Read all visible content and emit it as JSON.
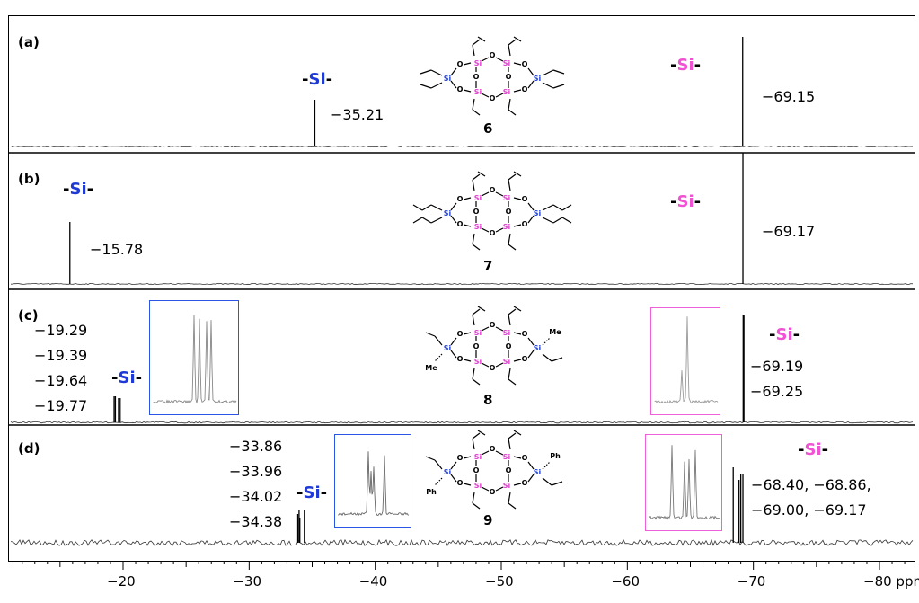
{
  "panels": [
    {
      "id": "a",
      "label": "(a)",
      "compound": "6",
      "peaks": [
        -35.21,
        -69.15
      ],
      "shift_labels": [
        "−35.21",
        "−69.15"
      ],
      "tags": {
        "blue": "Si",
        "pink": "Si"
      }
    },
    {
      "id": "b",
      "label": "(b)",
      "compound": "7",
      "peaks": [
        -15.78,
        -69.17
      ],
      "shift_labels": [
        "−15.78",
        "−69.17"
      ],
      "tags": {
        "blue": "Si",
        "pink": "Si"
      }
    },
    {
      "id": "c",
      "label": "(c)",
      "compound": "8",
      "peaks": [
        -19.29,
        -19.39,
        -19.64,
        -19.77,
        -69.19,
        -69.25
      ],
      "shift_labels_left": [
        "−19.29",
        "−19.39",
        "−19.64",
        "−19.77"
      ],
      "shift_labels_right": [
        "−69.19",
        "−69.25"
      ],
      "tags": {
        "blue": "Si",
        "pink": "Si"
      }
    },
    {
      "id": "d",
      "label": "(d)",
      "compound": "9",
      "peaks": [
        -33.86,
        -33.96,
        -34.02,
        -34.38,
        -68.4,
        -68.86,
        -69.0,
        -69.17
      ],
      "shift_labels_left": [
        "−33.86",
        "−33.96",
        "−34.02",
        "−34.38"
      ],
      "shift_labels_right": [
        "−68.40, −68.86,",
        "−69.00, −69.17"
      ],
      "tags": {
        "blue": "Si",
        "pink": "Si"
      }
    }
  ],
  "chart_data": {
    "type": "line",
    "xlabel": "ppm",
    "xlim": [
      -10,
      -84
    ],
    "x_ticks": [
      -20,
      -30,
      -40,
      -50,
      -60,
      -70,
      -80
    ],
    "x_tick_labels": [
      "−20",
      "−30",
      "−40",
      "−50",
      "−60",
      "−70",
      "−80 ppm"
    ],
    "series": [
      {
        "values": [
          -35.21,
          -69.15
        ]
      },
      {
        "values": [
          -15.78,
          -69.17
        ]
      },
      {
        "values": [
          -19.29,
          -19.39,
          -19.64,
          -19.77,
          -69.19,
          -69.25
        ]
      },
      {
        "values": [
          -33.86,
          -33.96,
          -34.02,
          -34.38,
          -68.4,
          -68.86,
          -69.0,
          -69.17
        ]
      }
    ]
  },
  "molecule": {
    "si": "Si",
    "o": "O",
    "me": "Me",
    "ph": "Ph"
  },
  "colors": {
    "blue": "#1f39d6",
    "pink": "#f052d3",
    "inset_blue": "#2b55e6",
    "inset_pink": "#ee5fd9"
  }
}
